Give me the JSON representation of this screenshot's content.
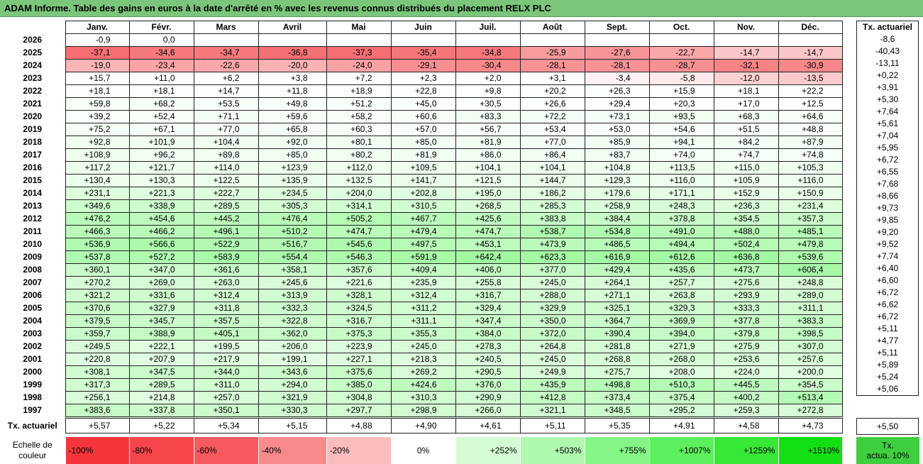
{
  "title": "ADAM Informe. Table des gains en euros à la date d'arrêté en % avec les revenus connus distribués du placement RELX PLC",
  "months": [
    "Janv.",
    "Févr.",
    "Mars",
    "Avril",
    "Mai",
    "Juin",
    "Juil.",
    "Août",
    "Sept.",
    "Oct.",
    "Nov.",
    "Déc."
  ],
  "side_header": "Tx. actuariel",
  "rows": [
    {
      "year": "2026",
      "values": [
        "-0,9",
        "0,0",
        "",
        "",
        "",
        "",
        "",
        "",
        "",
        "",
        "",
        ""
      ],
      "tx": "-8,6"
    },
    {
      "year": "2025",
      "values": [
        "-37,1",
        "-34,6",
        "-34,7",
        "-36,8",
        "-37,3",
        "-35,4",
        "-34,8",
        "-25,9",
        "-27,6",
        "-22,7",
        "-14,7",
        "-14,7"
      ],
      "tx": "-40,43"
    },
    {
      "year": "2024",
      "values": [
        "-19,0",
        "-23,4",
        "-22,6",
        "-20,0",
        "-24,0",
        "-29,1",
        "-30,4",
        "-28,1",
        "-28,1",
        "-28,7",
        "-32,1",
        "-30,9"
      ],
      "tx": "-13,11"
    },
    {
      "year": "2023",
      "values": [
        "+15,7",
        "+11,0",
        "+6,2",
        "+3,8",
        "+7,2",
        "+2,3",
        "+2,0",
        "+3,1",
        "-3,4",
        "-5,8",
        "-12,0",
        "-13,5"
      ],
      "tx": "+0,22"
    },
    {
      "year": "2022",
      "values": [
        "+18,1",
        "+18,1",
        "+14,7",
        "+11,8",
        "+18,9",
        "+22,8",
        "+9,8",
        "+20,2",
        "+26,3",
        "+15,9",
        "+18,1",
        "+22,2"
      ],
      "tx": "+3,91"
    },
    {
      "year": "2021",
      "values": [
        "+59,8",
        "+68,2",
        "+53,5",
        "+49,8",
        "+51,2",
        "+45,0",
        "+30,5",
        "+26,6",
        "+29,4",
        "+20,3",
        "+17,0",
        "+12,5"
      ],
      "tx": "+5,30"
    },
    {
      "year": "2020",
      "values": [
        "+39,2",
        "+52,4",
        "+71,1",
        "+59,6",
        "+58,2",
        "+60,6",
        "+83,3",
        "+72,2",
        "+73,1",
        "+93,5",
        "+68,3",
        "+64,6"
      ],
      "tx": "+7,64"
    },
    {
      "year": "2019",
      "values": [
        "+75,2",
        "+67,1",
        "+77,0",
        "+65,8",
        "+60,3",
        "+57,0",
        "+56,7",
        "+53,4",
        "+53,0",
        "+54,6",
        "+51,5",
        "+48,8"
      ],
      "tx": "+5,61"
    },
    {
      "year": "2018",
      "values": [
        "+92,8",
        "+101,9",
        "+104,4",
        "+92,0",
        "+80,1",
        "+85,0",
        "+81,9",
        "+77,0",
        "+85,9",
        "+94,1",
        "+84,2",
        "+87,9"
      ],
      "tx": "+7,04"
    },
    {
      "year": "2017",
      "values": [
        "+108,9",
        "+96,2",
        "+89,8",
        "+85,0",
        "+80,2",
        "+81,9",
        "+86,0",
        "+86,4",
        "+83,7",
        "+74,0",
        "+74,7",
        "+74,8"
      ],
      "tx": "+5,95"
    },
    {
      "year": "2016",
      "values": [
        "+117,2",
        "+121,7",
        "+114,0",
        "+123,9",
        "+112,0",
        "+109,5",
        "+104,1",
        "+104,1",
        "+104,8",
        "+113,5",
        "+115,0",
        "+105,3"
      ],
      "tx": "+6,72"
    },
    {
      "year": "2015",
      "values": [
        "+130,4",
        "+130,3",
        "+122,5",
        "+135,9",
        "+132,5",
        "+141,7",
        "+121,5",
        "+144,7",
        "+129,3",
        "+116,0",
        "+105,9",
        "+116,0"
      ],
      "tx": "+6,55"
    },
    {
      "year": "2014",
      "values": [
        "+231,1",
        "+221,3",
        "+222,7",
        "+234,5",
        "+204,0",
        "+202,8",
        "+195,0",
        "+186,2",
        "+179,6",
        "+171,1",
        "+152,9",
        "+150,9"
      ],
      "tx": "+7,68"
    },
    {
      "year": "2013",
      "values": [
        "+349,6",
        "+338,9",
        "+289,5",
        "+305,3",
        "+314,1",
        "+310,5",
        "+268,5",
        "+285,3",
        "+258,9",
        "+248,3",
        "+236,3",
        "+231,4"
      ],
      "tx": "+8,66"
    },
    {
      "year": "2012",
      "values": [
        "+476,2",
        "+454,6",
        "+445,2",
        "+476,4",
        "+505,2",
        "+467,7",
        "+425,6",
        "+383,8",
        "+384,4",
        "+378,8",
        "+354,5",
        "+357,3"
      ],
      "tx": "+9,73"
    },
    {
      "year": "2011",
      "values": [
        "+466,3",
        "+466,2",
        "+496,1",
        "+510,2",
        "+474,7",
        "+479,4",
        "+474,7",
        "+538,7",
        "+534,8",
        "+491,0",
        "+488,0",
        "+485,1"
      ],
      "tx": "+9,85"
    },
    {
      "year": "2010",
      "values": [
        "+536,9",
        "+566,6",
        "+522,9",
        "+516,7",
        "+545,6",
        "+497,5",
        "+453,1",
        "+473,9",
        "+486,5",
        "+494,4",
        "+502,4",
        "+479,8"
      ],
      "tx": "+9,20"
    },
    {
      "year": "2009",
      "values": [
        "+537,8",
        "+527,2",
        "+583,9",
        "+554,4",
        "+546,3",
        "+591,9",
        "+642,4",
        "+623,3",
        "+616,9",
        "+612,6",
        "+636,8",
        "+539,6"
      ],
      "tx": "+9,52"
    },
    {
      "year": "2008",
      "values": [
        "+360,1",
        "+347,0",
        "+361,6",
        "+358,1",
        "+357,6",
        "+409,4",
        "+406,0",
        "+377,0",
        "+429,4",
        "+435,6",
        "+473,7",
        "+606,4"
      ],
      "tx": "+7,74"
    },
    {
      "year": "2007",
      "values": [
        "+270,2",
        "+269,0",
        "+263,0",
        "+245,6",
        "+221,6",
        "+235,9",
        "+255,8",
        "+245,0",
        "+264,1",
        "+257,7",
        "+275,6",
        "+248,8"
      ],
      "tx": "+6,40"
    },
    {
      "year": "2006",
      "values": [
        "+321,2",
        "+331,6",
        "+312,4",
        "+313,9",
        "+328,1",
        "+312,4",
        "+316,7",
        "+288,0",
        "+271,1",
        "+263,8",
        "+293,9",
        "+289,0"
      ],
      "tx": "+6,60"
    },
    {
      "year": "2005",
      "values": [
        "+370,6",
        "+327,9",
        "+311,8",
        "+332,3",
        "+324,5",
        "+311,2",
        "+329,4",
        "+329,9",
        "+325,1",
        "+329,3",
        "+333,3",
        "+311,1"
      ],
      "tx": "+6,72"
    },
    {
      "year": "2004",
      "values": [
        "+379,5",
        "+345,7",
        "+357,5",
        "+322,8",
        "+316,7",
        "+311,1",
        "+347,4",
        "+350,0",
        "+364,7",
        "+369,9",
        "+377,8",
        "+383,3"
      ],
      "tx": "+6,62"
    },
    {
      "year": "2003",
      "values": [
        "+359,7",
        "+388,9",
        "+405,1",
        "+362,0",
        "+375,3",
        "+355,3",
        "+384,0",
        "+372,0",
        "+390,4",
        "+394,0",
        "+379,8",
        "+398,5"
      ],
      "tx": "+6,72"
    },
    {
      "year": "2002",
      "values": [
        "+249,5",
        "+222,1",
        "+199,5",
        "+206,0",
        "+223,9",
        "+245,0",
        "+278,3",
        "+264,8",
        "+281,8",
        "+271,9",
        "+275,9",
        "+307,0"
      ],
      "tx": "+5,11"
    },
    {
      "year": "2001",
      "values": [
        "+220,8",
        "+207,9",
        "+217,9",
        "+199,1",
        "+227,1",
        "+218,3",
        "+240,5",
        "+245,0",
        "+268,8",
        "+268,0",
        "+253,6",
        "+257,6"
      ],
      "tx": "+4,77"
    },
    {
      "year": "2000",
      "values": [
        "+308,1",
        "+347,5",
        "+344,0",
        "+343,6",
        "+375,6",
        "+269,2",
        "+290,5",
        "+249,9",
        "+275,7",
        "+208,0",
        "+224,0",
        "+200,0"
      ],
      "tx": "+5,11"
    },
    {
      "year": "1999",
      "values": [
        "+317,3",
        "+289,5",
        "+311,0",
        "+294,0",
        "+385,0",
        "+424,6",
        "+376,0",
        "+435,9",
        "+498,8",
        "+510,3",
        "+445,5",
        "+354,5"
      ],
      "tx": "+5,89"
    },
    {
      "year": "1998",
      "values": [
        "+256,1",
        "+214,8",
        "+257,0",
        "+321,9",
        "+304,8",
        "+310,3",
        "+290,9",
        "+412,8",
        "+373,4",
        "+375,4",
        "+400,2",
        "+513,4"
      ],
      "tx": "+5,24"
    },
    {
      "year": "1997",
      "values": [
        "+383,6",
        "+337,8",
        "+350,1",
        "+330,3",
        "+297,7",
        "+298,9",
        "+266,0",
        "+321,1",
        "+348,5",
        "+295,2",
        "+259,3",
        "+272,8"
      ],
      "tx": "+5,06"
    }
  ],
  "footer": {
    "label": "Tx. actuariel",
    "values": [
      "+5,57",
      "+5,22",
      "+5,34",
      "+5,15",
      "+4,88",
      "+4,90",
      "+4,61",
      "+5,11",
      "+5,35",
      "+4,91",
      "+4,58",
      "+4,73"
    ],
    "total": "+5,50"
  },
  "legend": {
    "label_line1": "Echelle de",
    "label_line2": "couleur",
    "items": [
      {
        "text": "-100%",
        "color": "#f4363c",
        "align": "left"
      },
      {
        "text": "-80%",
        "color": "#f5464c",
        "align": "left"
      },
      {
        "text": "-60%",
        "color": "#f6595e",
        "align": "left"
      },
      {
        "text": "-40%",
        "color": "#f98a8c",
        "align": "left"
      },
      {
        "text": "-20%",
        "color": "#fbbcbe",
        "align": "left"
      },
      {
        "text": "0%",
        "color": "#ffffff",
        "align": "center"
      },
      {
        "text": "+252%",
        "color": "#d5fbd5",
        "align": "right"
      },
      {
        "text": "+503%",
        "color": "#aef9ae",
        "align": "right"
      },
      {
        "text": "+755%",
        "color": "#85f585",
        "align": "right"
      },
      {
        "text": "+1007%",
        "color": "#5def5d",
        "align": "right"
      },
      {
        "text": "+1259%",
        "color": "#37e837",
        "align": "right"
      },
      {
        "text": "+1510%",
        "color": "#12e012",
        "align": "right"
      }
    ],
    "side_line1": "Tx.",
    "side_line2": "actua. 10%"
  }
}
